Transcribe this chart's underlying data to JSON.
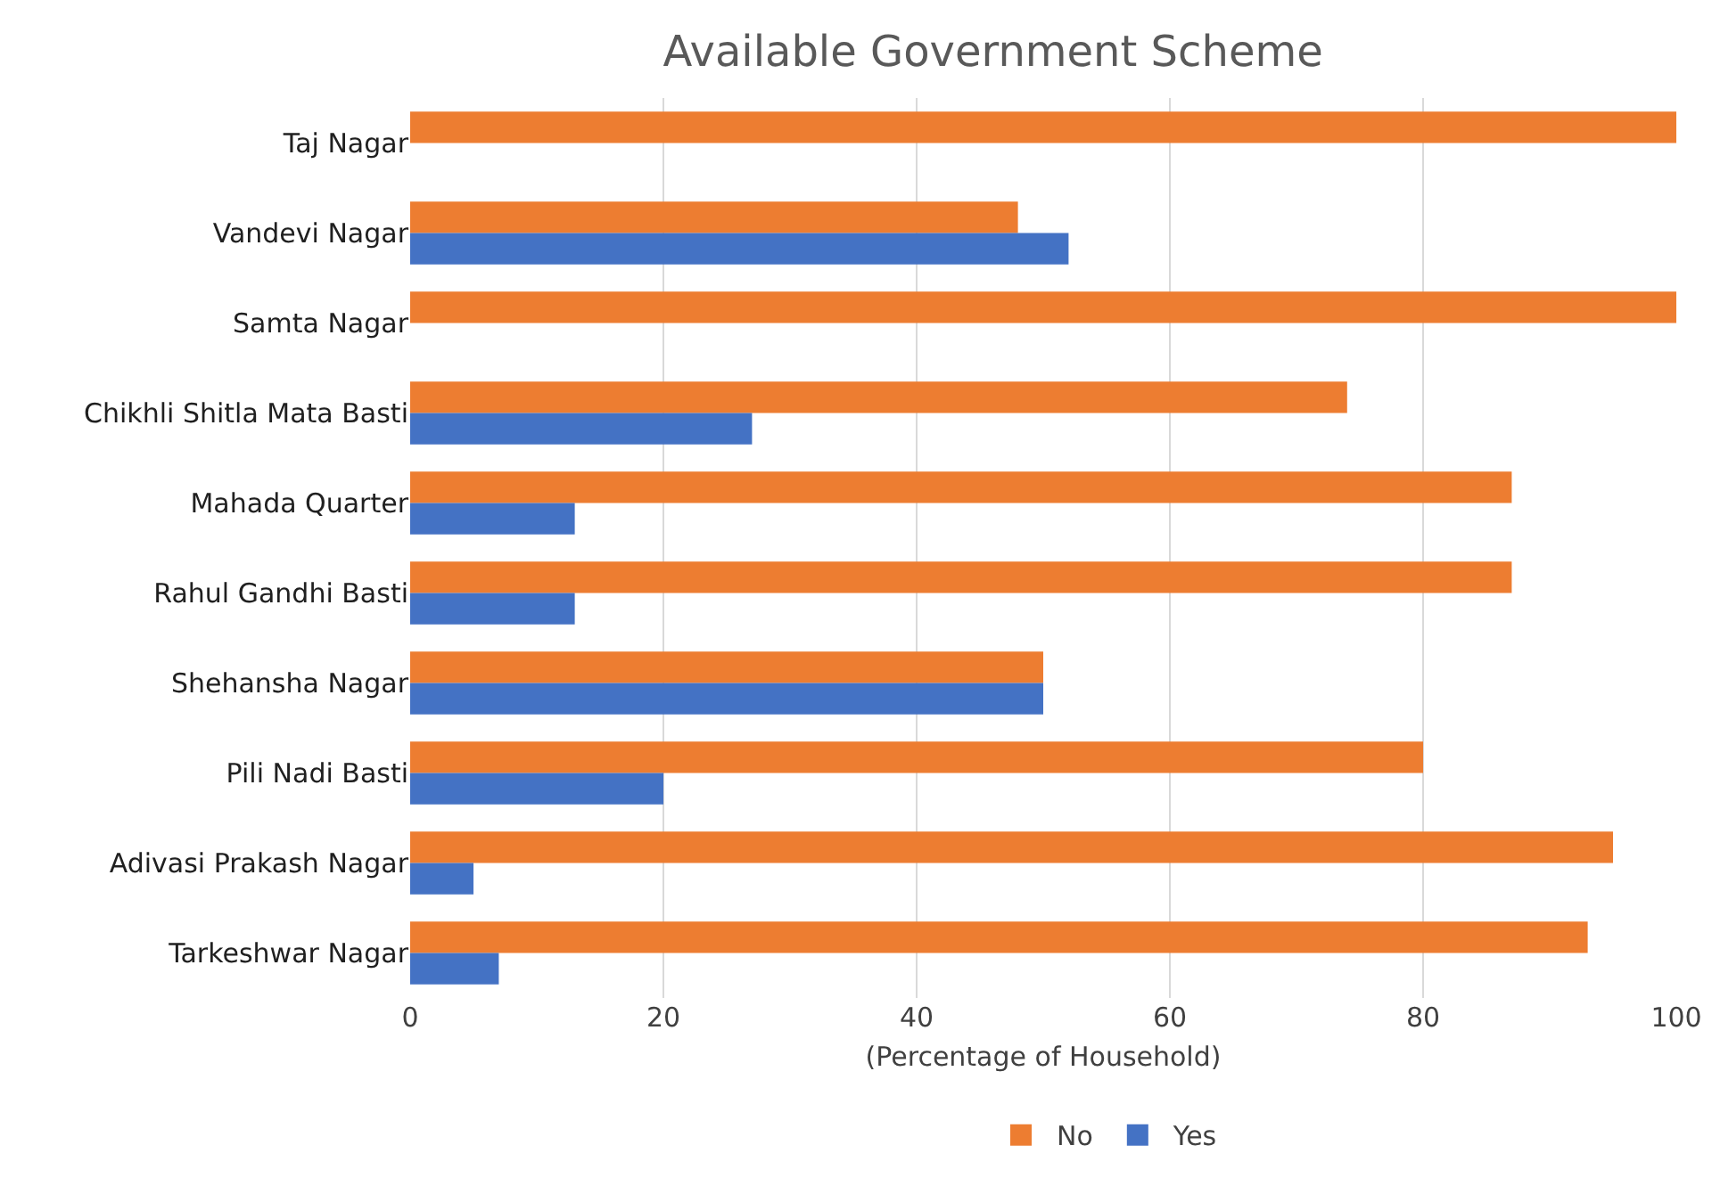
{
  "chart_data": {
    "type": "bar",
    "orientation": "horizontal",
    "title": "Available Government Scheme",
    "xlabel": "(Percentage of Household)",
    "categories": [
      "Taj Nagar",
      "Vandevi Nagar",
      "Samta Nagar",
      "Chikhli Shitla Mata Basti",
      "Mahada Quarter",
      "Rahul Gandhi Basti",
      "Shehansha Nagar",
      "Pili Nadi Basti",
      "Adivasi Prakash Nagar",
      "Tarkeshwar Nagar"
    ],
    "series": [
      {
        "name": "No",
        "color": "#ed7d31",
        "values": [
          100,
          48,
          100,
          74,
          87,
          87,
          50,
          80,
          95,
          93
        ]
      },
      {
        "name": "Yes",
        "color": "#4472c4",
        "values": [
          0,
          52,
          0,
          27,
          13,
          13,
          50,
          20,
          5,
          7
        ]
      }
    ],
    "xlim": [
      0,
      100
    ],
    "xticks": [
      0,
      20,
      40,
      60,
      80,
      100
    ],
    "grid": "x",
    "legend": "bottom"
  }
}
